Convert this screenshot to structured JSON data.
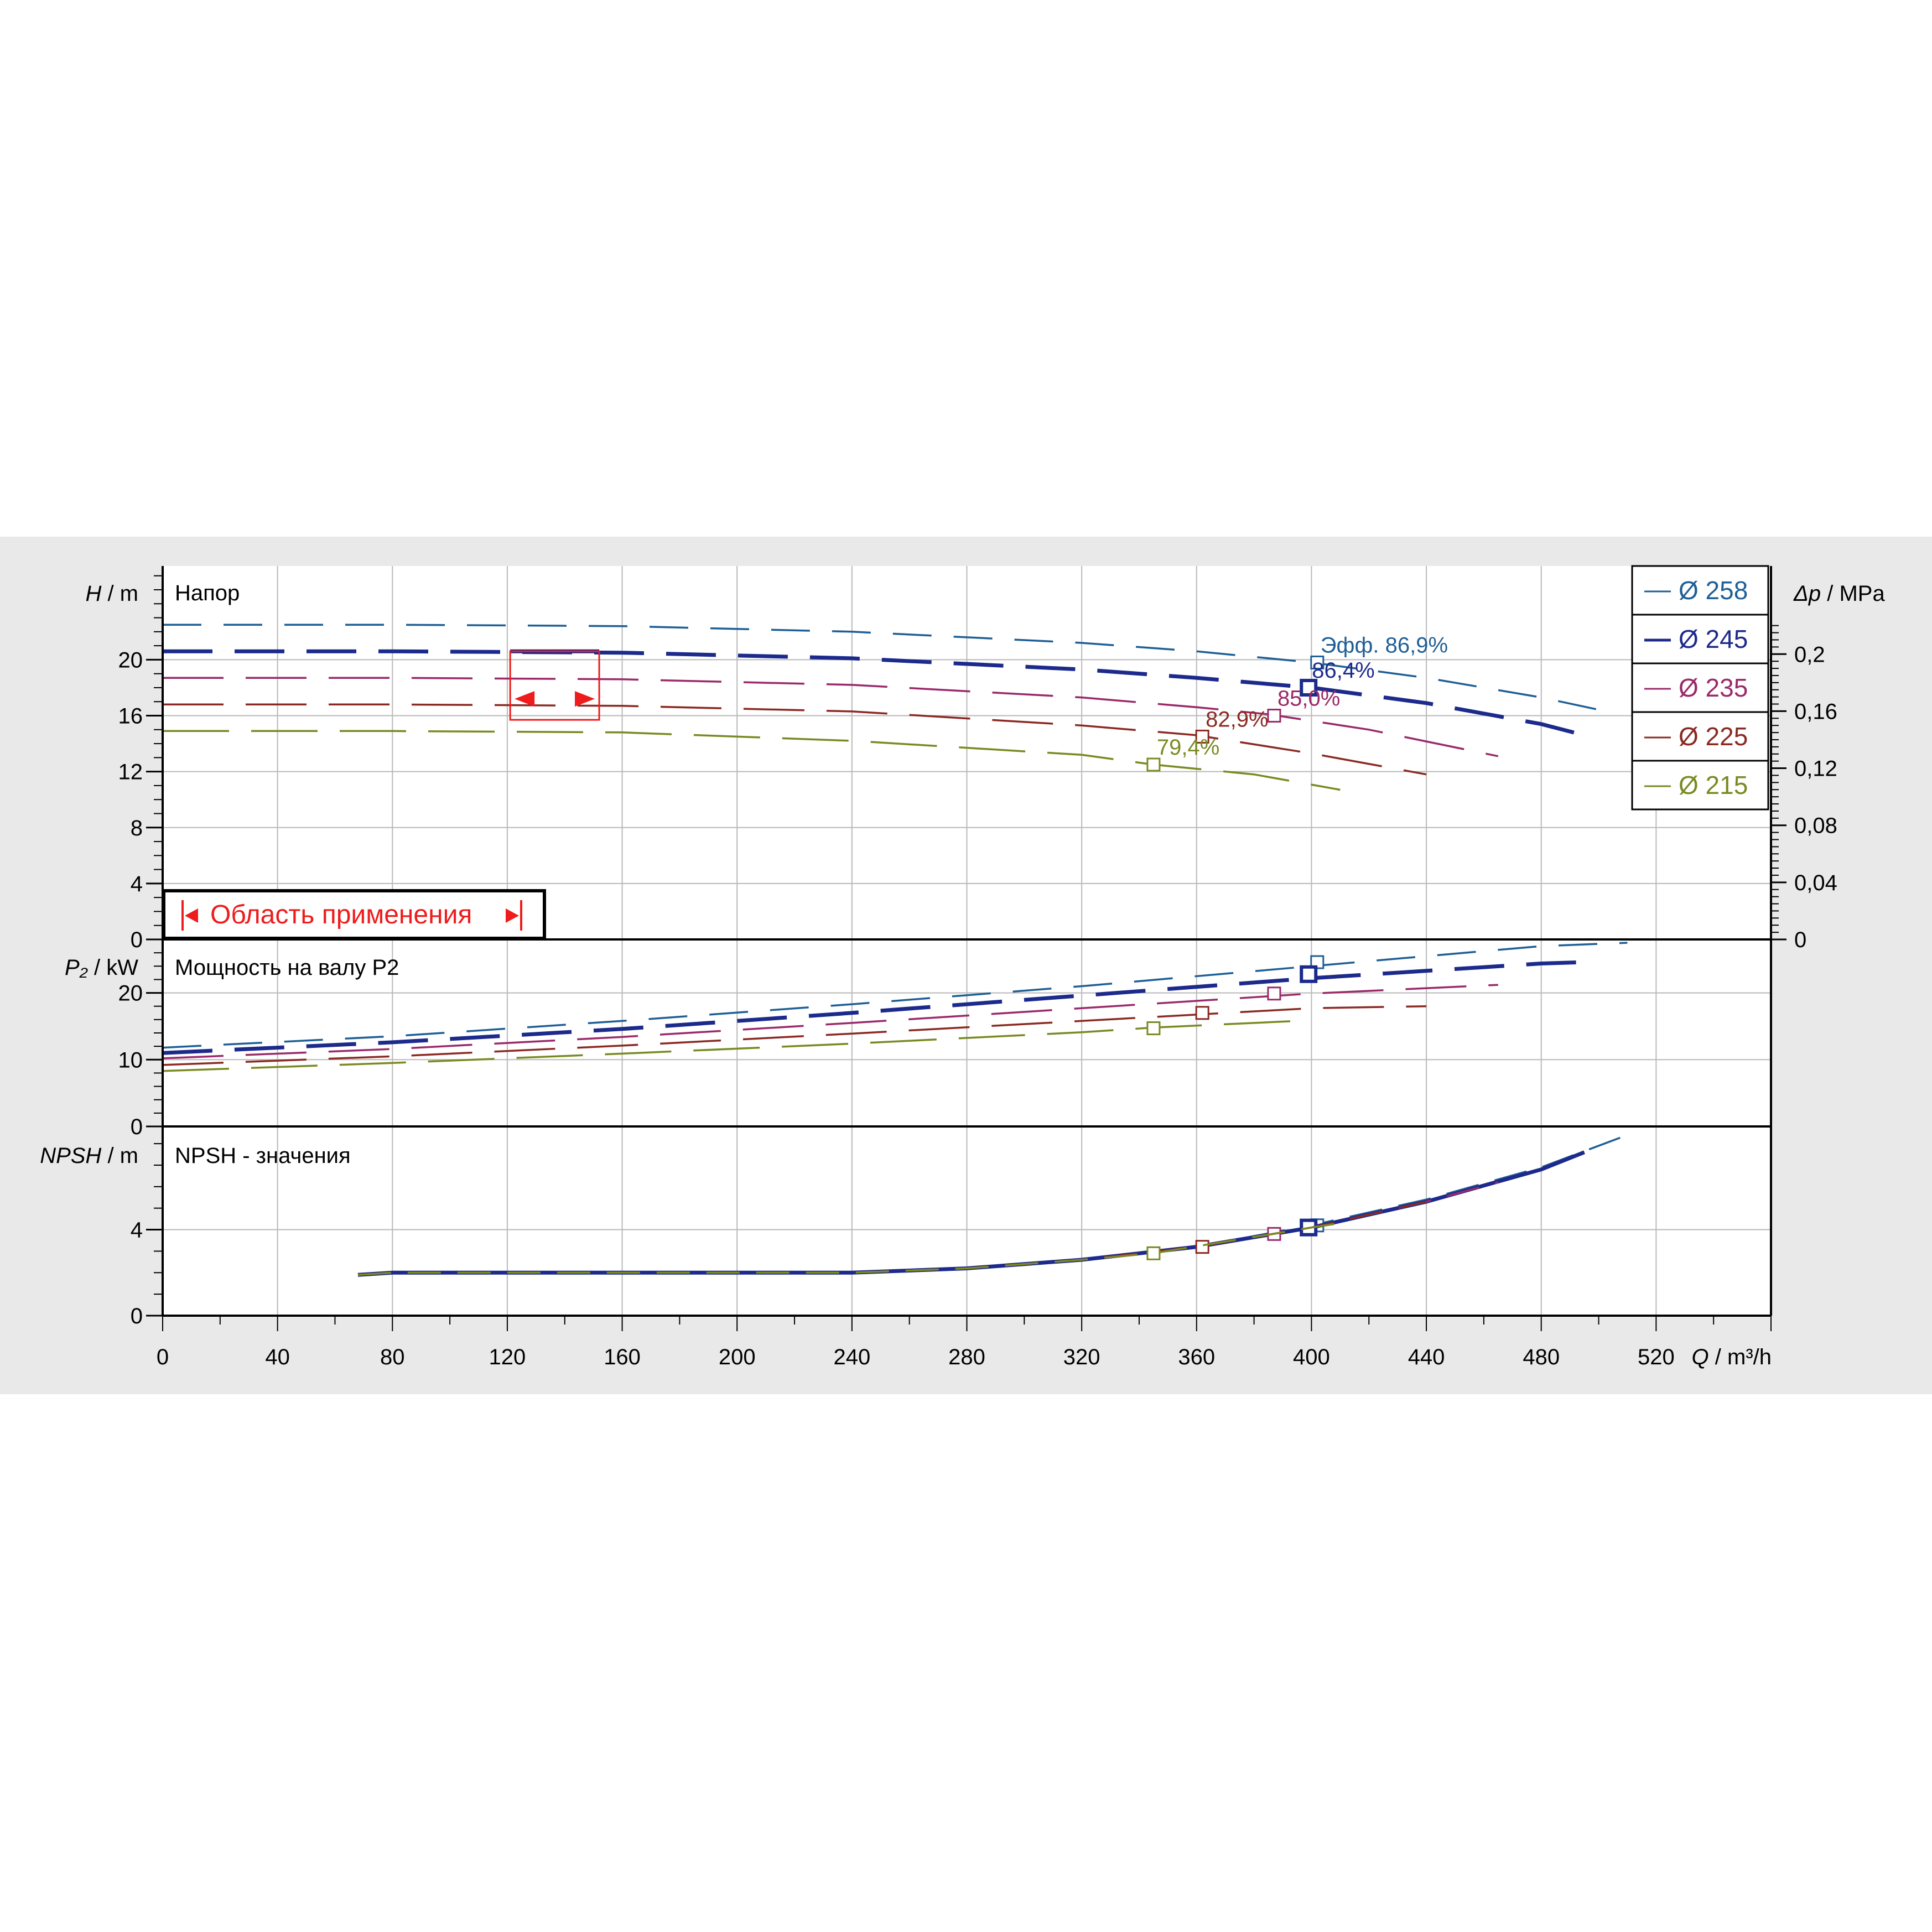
{
  "chart_data": {
    "type": "line",
    "x_axis": {
      "symbol": "Q",
      "unit": "m³/h",
      "range": [
        0,
        560
      ],
      "ticks": [
        0,
        40,
        80,
        120,
        160,
        200,
        240,
        280,
        320,
        360,
        400,
        440,
        480,
        520
      ],
      "tick_labels": [
        "0",
        "40",
        "80",
        "120",
        "160",
        "200",
        "240",
        "280",
        "320",
        "360",
        "400",
        "440",
        "480",
        "520"
      ]
    },
    "legend": [
      {
        "label": "Ø 258",
        "color": "#1f5f96"
      },
      {
        "label": "Ø 245",
        "color": "#1c2a8c"
      },
      {
        "label": "Ø 235",
        "color": "#9a2a6a"
      },
      {
        "label": "Ø 225",
        "color": "#8b2a22"
      },
      {
        "label": "Ø 215",
        "color": "#7a8a22"
      }
    ],
    "legend_position": "top-right",
    "grid": true,
    "panels": {
      "head": {
        "title": "Напор",
        "ylabel_symbol": "H",
        "ylabel_unit": "m",
        "ylim": [
          0,
          26.7
        ],
        "yticks": [
          0,
          4,
          8,
          12,
          16,
          20
        ],
        "ytick_labels": [
          "0",
          "4",
          "8",
          "12",
          "16",
          "20"
        ],
        "y2label_symbol": "Δp",
        "y2label_unit": "MPa",
        "y2ticks": [
          0,
          0.04,
          0.08,
          0.12,
          0.16,
          0.2
        ],
        "y2tick_labels": [
          "0",
          "0,04",
          "0,08",
          "0,12",
          "0,16",
          "0,2"
        ],
        "series": [
          {
            "name": "Ø 258",
            "x": [
              0,
              80,
              160,
              240,
              320,
              360,
              400,
              440,
              480,
              505
            ],
            "y": [
              22.5,
              22.5,
              22.4,
              22.0,
              21.2,
              20.6,
              19.8,
              18.7,
              17.3,
              16.2
            ],
            "bep": {
              "x": 402,
              "y": 19.8
            },
            "eff_label": "Эфф.  86,9%"
          },
          {
            "name": "Ø 245",
            "x": [
              0,
              80,
              160,
              240,
              320,
              360,
              400,
              440,
              480,
              495
            ],
            "y": [
              20.6,
              20.6,
              20.5,
              20.1,
              19.3,
              18.7,
              18.0,
              16.9,
              15.4,
              14.6
            ],
            "bep": {
              "x": 399,
              "y": 18.0
            },
            "eff_label": "86,4%"
          },
          {
            "name": "Ø 235",
            "x": [
              0,
              80,
              160,
              240,
              320,
              360,
              385,
              420,
              465
            ],
            "y": [
              18.7,
              18.7,
              18.6,
              18.2,
              17.3,
              16.6,
              16.1,
              15.0,
              13.1
            ],
            "bep": {
              "x": 387,
              "y": 16.0
            },
            "eff_label": "85,0%"
          },
          {
            "name": "Ø 225",
            "x": [
              0,
              80,
              160,
              240,
              320,
              360,
              400,
              440
            ],
            "y": [
              16.8,
              16.8,
              16.7,
              16.3,
              15.3,
              14.6,
              13.3,
              11.8
            ],
            "bep": {
              "x": 362,
              "y": 14.5
            },
            "eff_label": "82,9%"
          },
          {
            "name": "Ø 215",
            "x": [
              0,
              80,
              160,
              240,
              320,
              345,
              380,
              410
            ],
            "y": [
              14.9,
              14.9,
              14.8,
              14.2,
              13.2,
              12.5,
              11.8,
              10.7
            ],
            "bep": {
              "x": 345,
              "y": 12.5
            },
            "eff_label": "79,4%"
          }
        ],
        "operating_range": {
          "label": "Область применения",
          "x_min": 121,
          "x_max": 152,
          "head": 20.6
        }
      },
      "power": {
        "title": "Мощность на валу P2",
        "ylabel_symbol": "P₂",
        "ylabel_unit": "kW",
        "ylim": [
          0,
          28
        ],
        "yticks": [
          0,
          10,
          20
        ],
        "ytick_labels": [
          "0",
          "10",
          "20"
        ],
        "series": [
          {
            "name": "Ø 258",
            "x": [
              0,
              80,
              160,
              240,
              320,
              400,
              480,
              510
            ],
            "y": [
              11.8,
              13.5,
              15.8,
              18.3,
              21.0,
              24.0,
              27.0,
              27.5
            ],
            "bep": {
              "x": 402,
              "y": 24.6
            }
          },
          {
            "name": "Ø 245",
            "x": [
              0,
              80,
              160,
              240,
              320,
              400,
              480,
              495
            ],
            "y": [
              11.0,
              12.6,
              14.6,
              17.0,
              19.6,
              22.2,
              24.4,
              24.6
            ],
            "bep": {
              "x": 399,
              "y": 22.8
            }
          },
          {
            "name": "Ø 235",
            "x": [
              0,
              80,
              160,
              240,
              320,
              400,
              465
            ],
            "y": [
              10.2,
              11.6,
              13.4,
              15.5,
              17.7,
              19.9,
              21.2
            ],
            "bep": {
              "x": 387,
              "y": 19.9
            }
          },
          {
            "name": "Ø 225",
            "x": [
              0,
              80,
              160,
              240,
              320,
              400,
              440
            ],
            "y": [
              9.2,
              10.5,
              12.1,
              13.9,
              15.8,
              17.7,
              18.0
            ],
            "bep": {
              "x": 362,
              "y": 17.0
            }
          },
          {
            "name": "Ø 215",
            "x": [
              0,
              80,
              160,
              240,
              320,
              345,
              400
            ],
            "y": [
              8.3,
              9.5,
              10.9,
              12.4,
              14.1,
              14.8,
              15.9
            ],
            "bep": {
              "x": 345,
              "y": 14.7
            }
          }
        ]
      },
      "npsh": {
        "title": "NPSH - значения",
        "ylabel_symbol": "NPSH",
        "ylabel_unit": "m",
        "ylim": [
          0,
          8.8
        ],
        "yticks": [
          0,
          4
        ],
        "ytick_labels": [
          "0",
          "4"
        ],
        "series": [
          {
            "name": "Ø 258",
            "x": [
              68,
              80,
              160,
              240,
              280,
              320,
              360,
              400,
              440,
              480,
              510
            ],
            "y": [
              1.9,
              2.0,
              2.0,
              2.0,
              2.2,
              2.6,
              3.2,
              4.2,
              5.4,
              6.9,
              8.4
            ],
            "bep": {
              "x": 402,
              "y": 4.2
            }
          },
          {
            "name": "Ø 245",
            "x": [
              68,
              80,
              160,
              240,
              280,
              320,
              360,
              400,
              440,
              480,
              495
            ],
            "y": [
              1.9,
              2.0,
              2.0,
              2.0,
              2.2,
              2.6,
              3.2,
              4.1,
              5.3,
              6.8,
              7.6
            ],
            "bep": {
              "x": 399,
              "y": 4.1
            }
          },
          {
            "name": "Ø 235",
            "x": [
              68,
              80,
              160,
              240,
              280,
              320,
              360,
              400,
              440,
              465
            ],
            "y": [
              1.9,
              2.0,
              2.0,
              2.0,
              2.2,
              2.6,
              3.2,
              4.1,
              5.3,
              6.2
            ],
            "bep": {
              "x": 387,
              "y": 3.8
            }
          },
          {
            "name": "Ø 225",
            "x": [
              68,
              80,
              160,
              240,
              280,
              320,
              360,
              400,
              440
            ],
            "y": [
              1.9,
              2.0,
              2.0,
              2.0,
              2.2,
              2.6,
              3.2,
              4.1,
              5.3
            ],
            "bep": {
              "x": 362,
              "y": 3.2
            }
          },
          {
            "name": "Ø 215",
            "x": [
              68,
              80,
              160,
              240,
              280,
              320,
              345,
              400,
              410
            ],
            "y": [
              1.9,
              2.0,
              2.0,
              2.0,
              2.2,
              2.6,
              2.9,
              4.1,
              4.3
            ],
            "bep": {
              "x": 345,
              "y": 2.9
            }
          }
        ]
      }
    }
  }
}
